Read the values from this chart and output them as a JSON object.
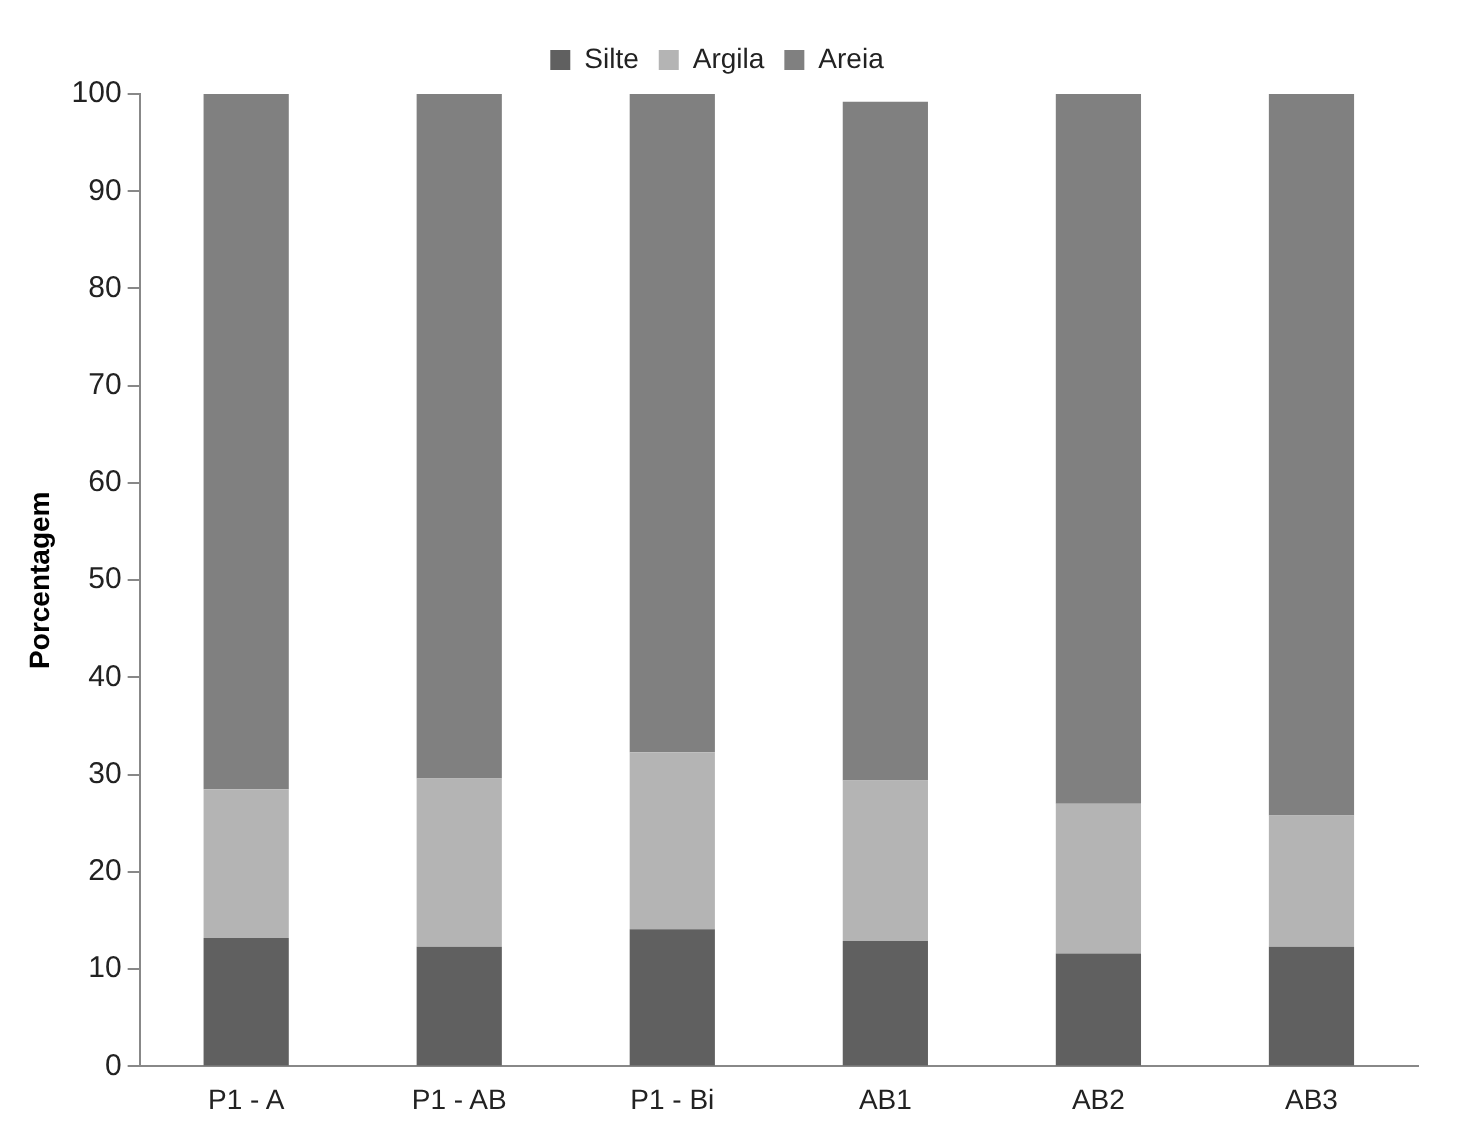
{
  "chart_data": {
    "type": "bar",
    "stacked": true,
    "ylabel": "Porcentagem",
    "categories": [
      "P1 - A",
      "P1 - AB",
      "P1 - Bi",
      "AB1",
      "AB2",
      "AB3"
    ],
    "series": [
      {
        "name": "Silte",
        "color": "#606060",
        "values": [
          13.2,
          12.3,
          14.1,
          12.9,
          11.6,
          12.3
        ]
      },
      {
        "name": "Argila",
        "color": "#b4b4b4",
        "values": [
          15.3,
          17.3,
          18.2,
          16.5,
          15.4,
          13.5
        ]
      },
      {
        "name": "Areia",
        "color": "#808080",
        "values": [
          71.5,
          70.4,
          67.7,
          69.8,
          73.0,
          74.2
        ]
      }
    ],
    "ylim": [
      0,
      100
    ],
    "yticks": [
      0,
      10,
      20,
      30,
      40,
      50,
      60,
      70,
      80,
      90,
      100
    ],
    "grid": false,
    "legend": "top"
  }
}
